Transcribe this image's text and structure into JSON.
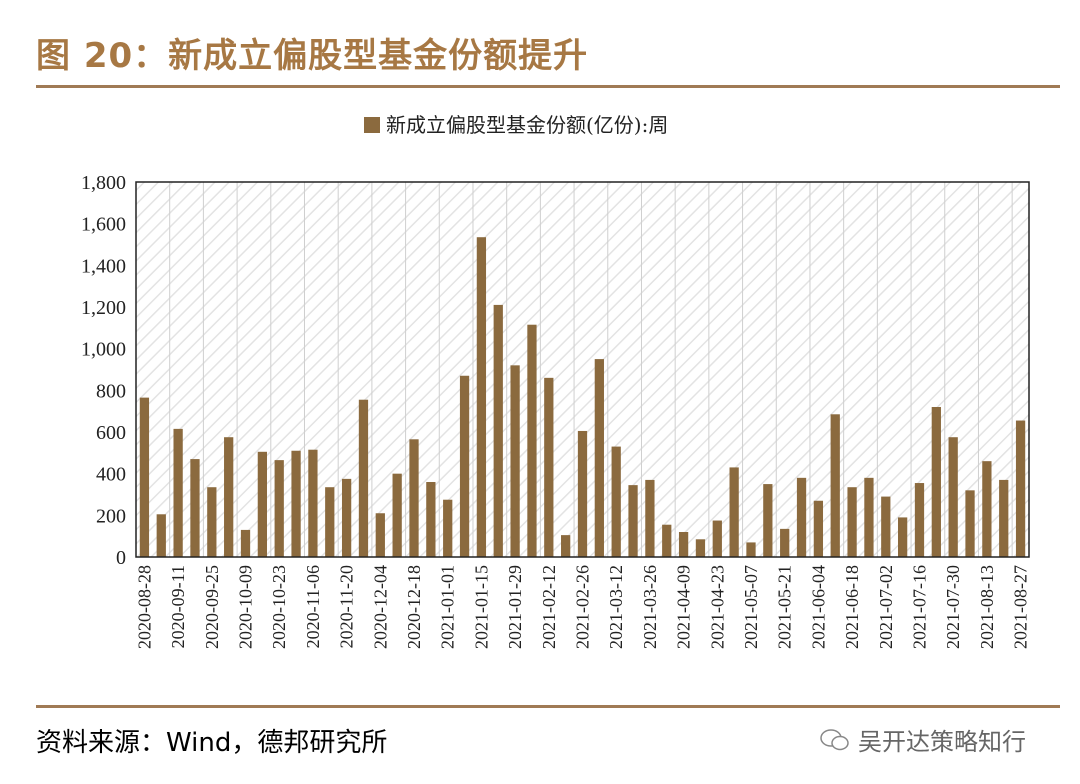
{
  "figure_title": "图 20：新成立偏股型基金份额提升",
  "source_text": "资料来源：Wind，德邦研究所",
  "watermark_text": "吴开达策略知行",
  "colors": {
    "bar": "#8b6a3e",
    "title": "#a77844",
    "rule": "#a07a55"
  },
  "chart_data": {
    "type": "bar",
    "title": "",
    "legend": [
      "新成立偏股型基金份额(亿份):周"
    ],
    "legend_position": "top-center",
    "xlabel": "",
    "ylabel": "",
    "ylim": [
      0,
      1800
    ],
    "yticks": [
      0,
      200,
      400,
      600,
      800,
      1000,
      1200,
      1400,
      1600,
      1800
    ],
    "ytick_labels": [
      "0",
      "200",
      "400",
      "600",
      "800",
      "1,000",
      "1,200",
      "1,400",
      "1,600",
      "1,800"
    ],
    "grid": true,
    "categories": [
      "2020-08-28",
      "2020-09-04",
      "2020-09-11",
      "2020-09-18",
      "2020-09-25",
      "2020-10-02",
      "2020-10-09",
      "2020-10-16",
      "2020-10-23",
      "2020-10-30",
      "2020-11-06",
      "2020-11-13",
      "2020-11-20",
      "2020-11-27",
      "2020-12-04",
      "2020-12-11",
      "2020-12-18",
      "2020-12-25",
      "2021-01-01",
      "2021-01-08",
      "2021-01-15",
      "2021-01-22",
      "2021-01-29",
      "2021-02-05",
      "2021-02-12",
      "2021-02-19",
      "2021-02-26",
      "2021-03-05",
      "2021-03-12",
      "2021-03-19",
      "2021-03-26",
      "2021-04-02",
      "2021-04-09",
      "2021-04-16",
      "2021-04-23",
      "2021-04-30",
      "2021-05-07",
      "2021-05-14",
      "2021-05-21",
      "2021-05-28",
      "2021-06-04",
      "2021-06-11",
      "2021-06-18",
      "2021-06-25",
      "2021-07-02",
      "2021-07-09",
      "2021-07-16",
      "2021-07-23",
      "2021-07-30",
      "2021-08-06",
      "2021-08-13",
      "2021-08-20",
      "2021-08-27"
    ],
    "tick_labels": [
      "2020-08-28",
      "2020-09-11",
      "2020-09-25",
      "2020-10-09",
      "2020-10-23",
      "2020-11-06",
      "2020-11-20",
      "2020-12-04",
      "2020-12-18",
      "2021-01-01",
      "2021-01-15",
      "2021-01-29",
      "2021-02-12",
      "2021-02-26",
      "2021-03-12",
      "2021-03-26",
      "2021-04-09",
      "2021-04-23",
      "2021-05-07",
      "2021-05-21",
      "2021-06-04",
      "2021-06-18",
      "2021-07-02",
      "2021-07-16",
      "2021-07-30",
      "2021-08-13",
      "2021-08-27"
    ],
    "values": [
      765,
      205,
      615,
      470,
      335,
      575,
      130,
      505,
      465,
      510,
      515,
      335,
      375,
      755,
      210,
      400,
      565,
      360,
      275,
      870,
      1535,
      1210,
      920,
      1115,
      860,
      105,
      605,
      950,
      530,
      345,
      370,
      155,
      120,
      85,
      175,
      430,
      70,
      350,
      135,
      380,
      270,
      685,
      335,
      380,
      290,
      190,
      355,
      720,
      575,
      320,
      460,
      370,
      655
    ]
  }
}
